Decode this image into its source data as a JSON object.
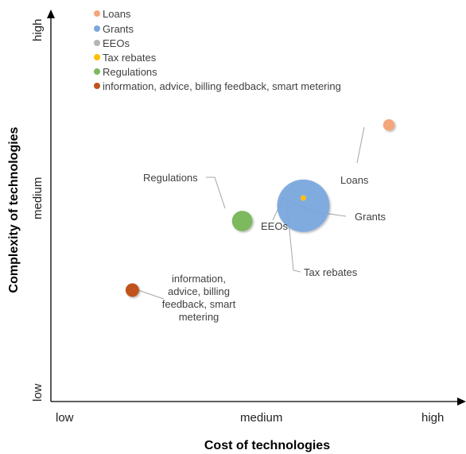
{
  "chart_data": {
    "type": "bubble",
    "title": "",
    "xlabel": "Cost of technologies",
    "ylabel": "Complexity of technologies",
    "x_ticks": [
      "low",
      "medium",
      "high"
    ],
    "y_ticks": [
      "low",
      "medium",
      "high"
    ],
    "xlim": [
      0,
      10
    ],
    "ylim": [
      0,
      10
    ],
    "grid": false,
    "legend_position": "top-left",
    "series": [
      {
        "name": "Loans",
        "legend": "Loans",
        "x": 8.3,
        "y": 7.2,
        "size": 1,
        "color": "#F4A67A",
        "label": "Loans"
      },
      {
        "name": "Grants",
        "legend": "Grants",
        "x": 6.2,
        "y": 5.1,
        "size": 21,
        "color": "#7AA7DD",
        "label": "Grants"
      },
      {
        "name": "EEOs",
        "legend": "EEOs",
        "x": 6.2,
        "y": 5.3,
        "size": 0.3,
        "color": "#B5B5B5",
        "label": "EEOs"
      },
      {
        "name": "Tax rebates",
        "legend": "Tax rebates",
        "x": 6.2,
        "y": 5.3,
        "size": 0.2,
        "color": "#FFC000",
        "label": "Tax rebates"
      },
      {
        "name": "Regulations",
        "legend": "Regulations",
        "x": 4.7,
        "y": 4.7,
        "size": 3.2,
        "color": "#7CB95E",
        "label": "Regulations"
      },
      {
        "name": "information",
        "legend": "information, advice, billing feedback, smart metering",
        "x": 2.0,
        "y": 2.9,
        "size": 1.4,
        "color": "#C0531B",
        "label": "information, advice, billing feedback, smart metering"
      }
    ]
  }
}
